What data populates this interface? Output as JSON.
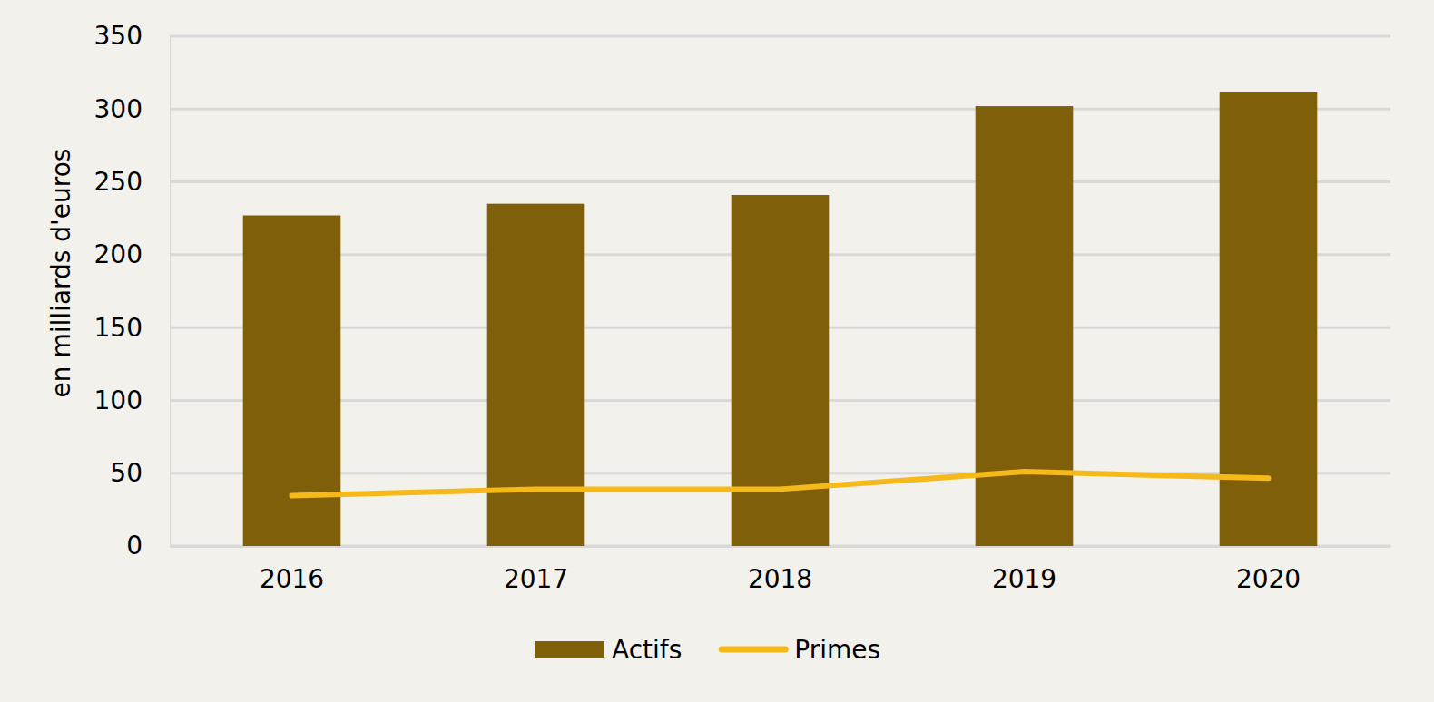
{
  "chart_data": {
    "type": "bar",
    "y_label": "en milliards d'euros",
    "categories": [
      "2016",
      "2017",
      "2018",
      "2019",
      "2020"
    ],
    "series": [
      {
        "name": "Actifs",
        "type": "bar",
        "color": "#7f5f0a",
        "values": [
          227,
          235,
          241,
          302,
          312
        ]
      },
      {
        "name": "Primes",
        "type": "line",
        "color": "#f6b91a",
        "values": [
          34.5,
          39,
          39,
          51,
          46.5
        ]
      }
    ],
    "ylim": [
      0,
      350
    ],
    "yticks": [
      0,
      50,
      100,
      150,
      200,
      250,
      300,
      350
    ],
    "grid": true,
    "legend": "bottom"
  }
}
